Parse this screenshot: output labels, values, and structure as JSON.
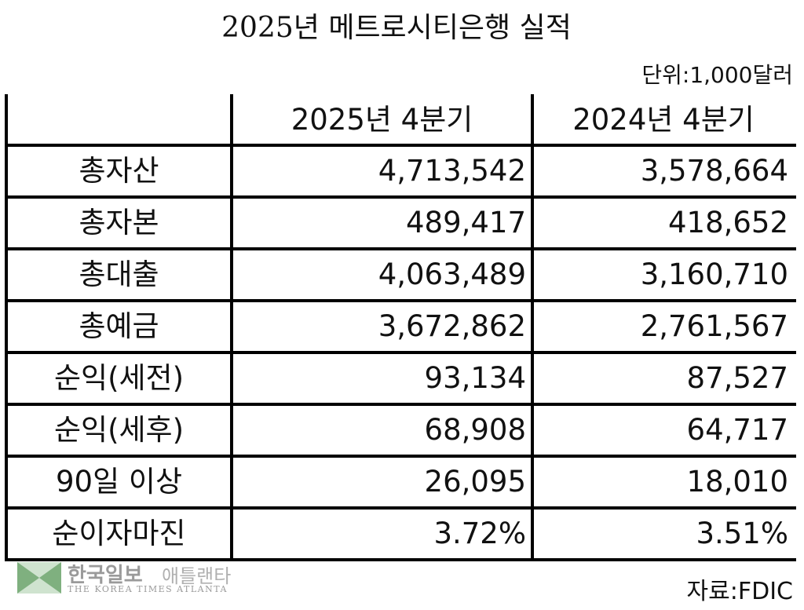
{
  "header": {
    "title": "2025년 메트로시티은행 실적",
    "unit": "단위:1,000달러"
  },
  "table": {
    "columns": [
      "2025년 4분기",
      "2024년 4분기"
    ],
    "rows": [
      [
        "총자산",
        "4,713,542",
        "3,578,664"
      ],
      [
        "총자본",
        "489,417",
        "418,652"
      ],
      [
        "총대출",
        "4,063,489",
        "3,160,710"
      ],
      [
        "총예금",
        "3,672,862",
        "2,761,567"
      ],
      [
        "순익(세전)",
        "93,134",
        "87,527"
      ],
      [
        "순익(세후)",
        "68,908",
        "64,717"
      ],
      [
        "90일 이상",
        "26,095",
        "18,010"
      ],
      [
        "순이자마진",
        "3.72%",
        "3.51%"
      ]
    ]
  },
  "footer": {
    "logo_name": "한국일보",
    "logo_city": "애틀랜타",
    "logo_subtitle": "THE KOREA TIMES ATLANTA",
    "source": "자료:FDIC"
  }
}
